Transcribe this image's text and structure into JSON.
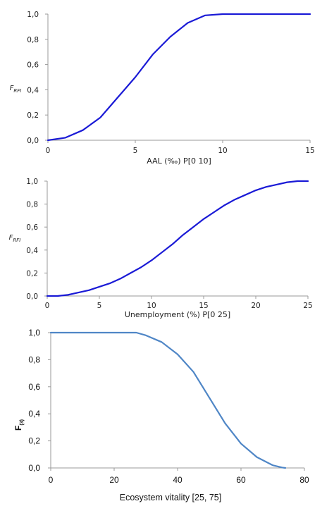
{
  "chart_data": [
    {
      "type": "line",
      "xlabel": "AAL (‰) P[0 10]",
      "ylabel": "F",
      "ylabel_sub": "RFI",
      "xlim": [
        0,
        15
      ],
      "ylim": [
        0,
        1
      ],
      "x_ticks": [
        "0",
        "5",
        "10",
        "15"
      ],
      "y_ticks": [
        "0,0",
        "0,2",
        "0,4",
        "0,6",
        "0,8",
        "1,0"
      ],
      "line_color": "#1a1ad6",
      "x": [
        0,
        1,
        2,
        3,
        4,
        5,
        6,
        7,
        8,
        9,
        10,
        11,
        12,
        13,
        14,
        15
      ],
      "y": [
        0.0,
        0.02,
        0.08,
        0.18,
        0.34,
        0.5,
        0.68,
        0.82,
        0.93,
        0.99,
        1.0,
        1.0,
        1.0,
        1.0,
        1.0,
        1.0
      ]
    },
    {
      "type": "line",
      "xlabel": "Unemployment (%) P[0 25]",
      "ylabel": "F",
      "ylabel_sub": "RFI",
      "xlim": [
        0,
        25
      ],
      "ylim": [
        0,
        1
      ],
      "x_ticks": [
        "0",
        "5",
        "10",
        "15",
        "20",
        "25"
      ],
      "y_ticks": [
        "0,0",
        "0,2",
        "0,4",
        "0,6",
        "0,8",
        "1,0"
      ],
      "line_color": "#1a1ad6",
      "x": [
        0,
        1,
        2,
        3,
        4,
        5,
        6,
        7,
        8,
        9,
        10,
        11,
        12,
        13,
        14,
        15,
        16,
        17,
        18,
        19,
        20,
        21,
        22,
        23,
        24,
        25
      ],
      "y": [
        0.0,
        0.0,
        0.01,
        0.03,
        0.05,
        0.08,
        0.11,
        0.15,
        0.2,
        0.25,
        0.31,
        0.38,
        0.45,
        0.53,
        0.6,
        0.67,
        0.73,
        0.79,
        0.84,
        0.88,
        0.92,
        0.95,
        0.97,
        0.99,
        1.0,
        1.0
      ]
    },
    {
      "type": "line",
      "xlabel": "Ecosystem vitality [25, 75]",
      "ylabel": "F",
      "ylabel_sub": "(3)",
      "xlim": [
        0,
        80
      ],
      "ylim": [
        0,
        1
      ],
      "x_ticks": [
        "0",
        "20",
        "40",
        "60",
        "80"
      ],
      "y_ticks": [
        "0,0",
        "0,2",
        "0,4",
        "0,6",
        "0,8",
        "1,0"
      ],
      "line_color": "#4f86c6",
      "x": [
        0,
        5,
        10,
        15,
        20,
        25,
        27,
        30,
        35,
        40,
        45,
        50,
        55,
        60,
        65,
        70,
        73,
        74
      ],
      "y": [
        1.0,
        1.0,
        1.0,
        1.0,
        1.0,
        1.0,
        1.0,
        0.98,
        0.93,
        0.84,
        0.71,
        0.52,
        0.33,
        0.18,
        0.08,
        0.02,
        0.003,
        0.0
      ]
    }
  ]
}
